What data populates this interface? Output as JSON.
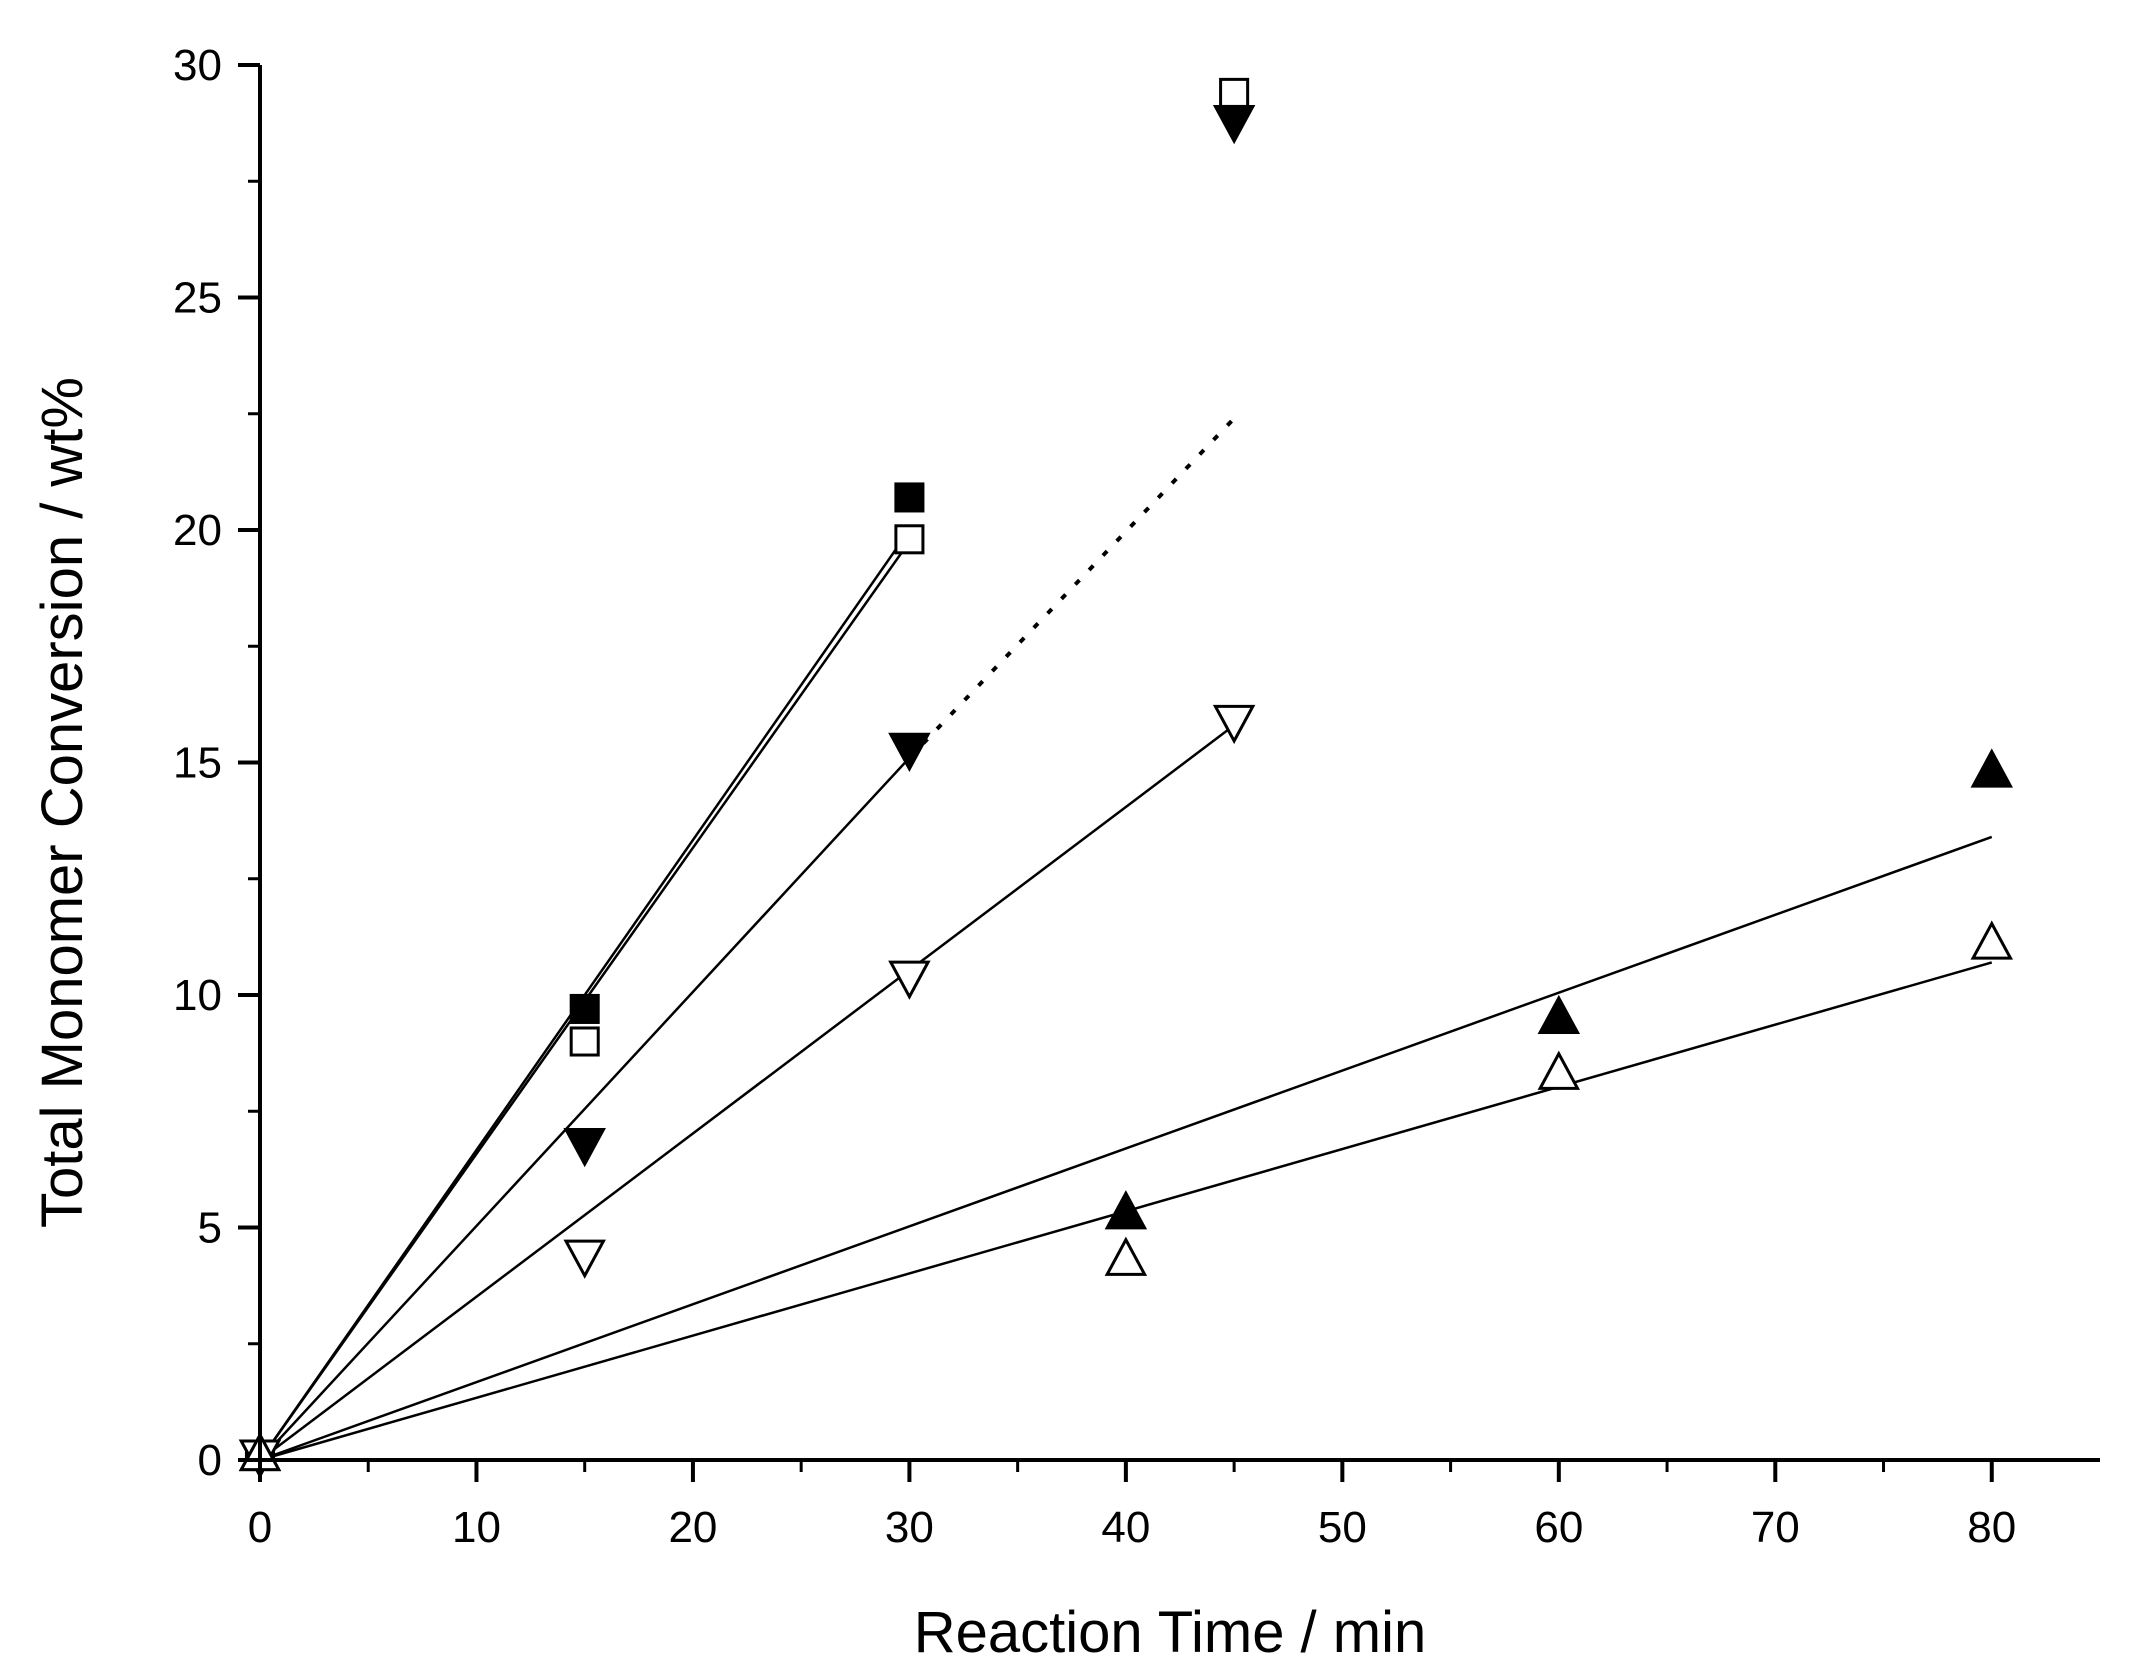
{
  "chart_data": {
    "type": "scatter",
    "title": "",
    "xlabel": "Reaction Time / min",
    "ylabel": "Total Monomer Conversion / wt%",
    "xlim": [
      0,
      85
    ],
    "ylim": [
      0,
      30
    ],
    "x_ticks": [
      0,
      10,
      20,
      30,
      40,
      50,
      60,
      70,
      80
    ],
    "y_ticks": [
      0,
      5,
      10,
      15,
      20,
      25,
      30
    ],
    "x_tick_labels": [
      "0",
      "10",
      "20",
      "30",
      "40",
      "50",
      "60",
      "70",
      "80"
    ],
    "y_tick_labels": [
      "0",
      "5",
      "10",
      "15",
      "20",
      "25",
      "30"
    ],
    "grid": false,
    "legend": "none",
    "series": [
      {
        "name": "filled-square",
        "marker": "square",
        "filled": true,
        "points": [
          [
            0,
            0.1
          ],
          [
            15,
            9.7
          ],
          [
            30,
            20.7
          ]
        ]
      },
      {
        "name": "open-square",
        "marker": "square",
        "filled": false,
        "points": [
          [
            0,
            0.1
          ],
          [
            15,
            9.0
          ],
          [
            30,
            19.8
          ],
          [
            45,
            29.4
          ]
        ]
      },
      {
        "name": "filled-down-triangle",
        "marker": "triangle-down",
        "filled": true,
        "points": [
          [
            0,
            0.1
          ],
          [
            15,
            6.8
          ],
          [
            30,
            15.3
          ],
          [
            45,
            28.8
          ]
        ]
      },
      {
        "name": "open-down-triangle",
        "marker": "triangle-down",
        "filled": false,
        "points": [
          [
            0,
            0.1
          ],
          [
            15,
            4.4
          ],
          [
            30,
            10.4
          ],
          [
            45,
            15.9
          ]
        ]
      },
      {
        "name": "filled-up-triangle",
        "marker": "triangle-up",
        "filled": true,
        "points": [
          [
            0,
            0.1
          ],
          [
            40,
            5.3
          ],
          [
            60,
            9.5
          ],
          [
            80,
            14.8
          ]
        ]
      },
      {
        "name": "open-up-triangle",
        "marker": "triangle-up",
        "filled": false,
        "points": [
          [
            0,
            0.1
          ],
          [
            40,
            4.3
          ],
          [
            60,
            8.3
          ],
          [
            80,
            11.1
          ]
        ]
      }
    ],
    "fit_lines": [
      {
        "name": "fit-filled-square",
        "from": [
          0,
          0
        ],
        "to": [
          30,
          20.0
        ],
        "style": "solid"
      },
      {
        "name": "fit-open-square",
        "from": [
          0,
          0
        ],
        "to": [
          30,
          19.75
        ],
        "style": "solid"
      },
      {
        "name": "fit-filled-down-triangle",
        "from": [
          0,
          0
        ],
        "to": [
          30,
          15.1
        ],
        "style": "solid"
      },
      {
        "name": "fit-filled-down-triangle-extension",
        "from": [
          30,
          15.1
        ],
        "to": [
          45,
          22.4
        ],
        "style": "dotted"
      },
      {
        "name": "fit-open-down-triangle",
        "from": [
          0,
          0
        ],
        "to": [
          45,
          15.8
        ],
        "style": "solid"
      },
      {
        "name": "fit-filled-up-triangle",
        "from": [
          0,
          0
        ],
        "to": [
          80,
          13.4
        ],
        "style": "solid"
      },
      {
        "name": "fit-open-up-triangle",
        "from": [
          0,
          0
        ],
        "to": [
          80,
          10.7
        ],
        "style": "solid"
      }
    ]
  }
}
